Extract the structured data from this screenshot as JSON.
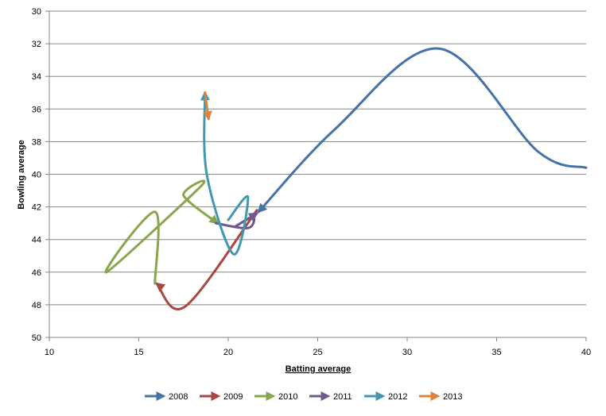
{
  "chart_data": {
    "type": "line",
    "title": "",
    "xlabel": "Batting average",
    "ylabel": "Bowling average",
    "xlim": [
      10,
      40
    ],
    "ylim": [
      30,
      50
    ],
    "y_inverted": true,
    "xticks": [
      10,
      15,
      20,
      25,
      30,
      35,
      40
    ],
    "yticks": [
      30,
      32,
      34,
      36,
      38,
      40,
      42,
      44,
      46,
      48,
      50
    ],
    "grid": "horizontal",
    "legend_position": "bottom",
    "line_style": "smoothed with end arrow",
    "series": [
      {
        "name": "2008",
        "color": "#4572A7",
        "points": [
          [
            40.0,
            39.6
          ],
          [
            37.3,
            38.6
          ],
          [
            31.8,
            32.3
          ],
          [
            26.0,
            37.2
          ],
          [
            21.7,
            42.3
          ]
        ]
      },
      {
        "name": "2009",
        "color": "#AA4643",
        "points": [
          [
            21.6,
            42.2
          ],
          [
            17.6,
            48.1
          ],
          [
            16.0,
            46.7
          ]
        ]
      },
      {
        "name": "2010",
        "color": "#89A54E",
        "points": [
          [
            15.9,
            46.7
          ],
          [
            15.9,
            42.3
          ],
          [
            13.2,
            46.0
          ],
          [
            18.5,
            40.7
          ],
          [
            17.5,
            41.3
          ],
          [
            19.4,
            43.0
          ]
        ]
      },
      {
        "name": "2011",
        "color": "#71588F",
        "points": [
          [
            19.3,
            43.0
          ],
          [
            21.1,
            43.3
          ],
          [
            21.4,
            42.6
          ],
          [
            20.4,
            43.2
          ],
          [
            21.6,
            42.4
          ]
        ]
      },
      {
        "name": "2012",
        "color": "#4198AF",
        "points": [
          [
            20.0,
            42.8
          ],
          [
            21.1,
            41.4
          ],
          [
            20.3,
            44.9
          ],
          [
            18.8,
            40.0
          ],
          [
            18.7,
            35.0
          ]
        ]
      },
      {
        "name": "2013",
        "color": "#DB843D",
        "points": [
          [
            18.7,
            35.0
          ],
          [
            18.9,
            36.6
          ]
        ]
      }
    ]
  }
}
